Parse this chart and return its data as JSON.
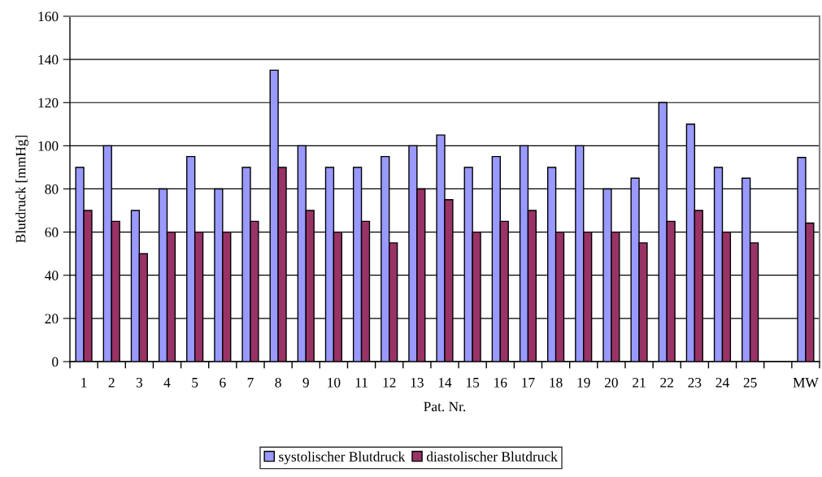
{
  "chart_data": {
    "type": "bar",
    "xlabel": "Pat. Nr.",
    "ylabel": "Blutdruck [mmHg]",
    "categories": [
      "1",
      "2",
      "3",
      "4",
      "5",
      "6",
      "7",
      "8",
      "9",
      "10",
      "11",
      "12",
      "13",
      "14",
      "15",
      "16",
      "17",
      "18",
      "19",
      "20",
      "21",
      "22",
      "23",
      "24",
      "25",
      null,
      "MW"
    ],
    "series": [
      {
        "name": "systolischer Blutdruck",
        "color": "#9999ff",
        "values": [
          90,
          100,
          70,
          80,
          95,
          80,
          90,
          135,
          100,
          90,
          90,
          95,
          100,
          105,
          90,
          95,
          100,
          90,
          100,
          80,
          85,
          120,
          110,
          90,
          85,
          null,
          94.6
        ]
      },
      {
        "name": "diastolischer Blutdruck",
        "color": "#993366",
        "values": [
          70,
          65,
          50,
          60,
          60,
          60,
          65,
          90,
          70,
          60,
          65,
          55,
          80,
          75,
          60,
          65,
          70,
          60,
          60,
          60,
          55,
          65,
          70,
          60,
          55,
          null,
          64.2
        ]
      }
    ],
    "ylim": [
      0,
      160
    ],
    "yticks": [
      0,
      20,
      40,
      60,
      80,
      100,
      120,
      140,
      160
    ],
    "grid": "y",
    "legend": "bottom"
  }
}
